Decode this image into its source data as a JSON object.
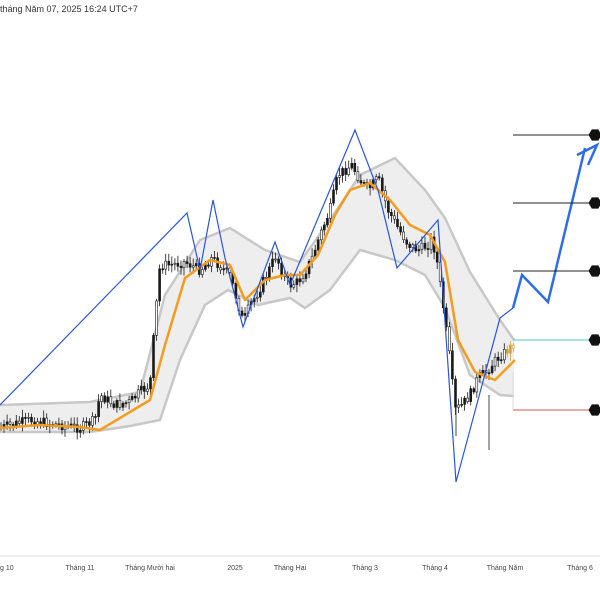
{
  "header": {
    "text": "tháng Năm 07, 2025 16:24 UTC+7"
  },
  "colors": {
    "background": "#ffffff",
    "candle": "#1a1a1a",
    "candle_recent": "#c8a43a",
    "band_fill": "#eeeeee",
    "band_edge": "#c8c8c8",
    "ema": "#f39c1f",
    "zigzag": "#2b55d6",
    "projection": "#2f6de4",
    "target_line": "#222222",
    "tp_line": "#59c5bc",
    "sl_line": "#d9534f",
    "marker": "#111111",
    "axis_line": "#e2e2e2"
  },
  "chart_data": {
    "type": "candlestick",
    "title": "",
    "xlabel": "",
    "ylabel": "",
    "y_axis_visible": false,
    "grid": false,
    "x_tick_labels": [
      "g 10",
      "Tháng 11",
      "Tháng Mười hai",
      "2025",
      "Tháng Hai",
      "Tháng 3",
      "Tháng 4",
      "Tháng Năm",
      "Tháng 6"
    ],
    "x_tick_positions_index": [
      0,
      80,
      150,
      235,
      290,
      365,
      435,
      505,
      580
    ],
    "price_path": [
      [
        0,
        428
      ],
      [
        30,
        420
      ],
      [
        60,
        425
      ],
      [
        80,
        428
      ],
      [
        95,
        420
      ],
      [
        100,
        395
      ],
      [
        115,
        405
      ],
      [
        130,
        402
      ],
      [
        140,
        392
      ],
      [
        150,
        385
      ],
      [
        155,
        320
      ],
      [
        160,
        265
      ],
      [
        170,
        265
      ],
      [
        185,
        262
      ],
      [
        200,
        270
      ],
      [
        212,
        258
      ],
      [
        222,
        268
      ],
      [
        230,
        275
      ],
      [
        237,
        300
      ],
      [
        243,
        322
      ],
      [
        250,
        305
      ],
      [
        258,
        292
      ],
      [
        268,
        272
      ],
      [
        276,
        255
      ],
      [
        283,
        275
      ],
      [
        290,
        285
      ],
      [
        298,
        282
      ],
      [
        305,
        272
      ],
      [
        312,
        258
      ],
      [
        320,
        235
      ],
      [
        330,
        210
      ],
      [
        338,
        175
      ],
      [
        345,
        170
      ],
      [
        352,
        165
      ],
      [
        360,
        180
      ],
      [
        368,
        190
      ],
      [
        378,
        178
      ],
      [
        388,
        210
      ],
      [
        398,
        228
      ],
      [
        408,
        244
      ],
      [
        418,
        250
      ],
      [
        428,
        245
      ],
      [
        432,
        238
      ],
      [
        437,
        262
      ],
      [
        443,
        305
      ],
      [
        450,
        360
      ],
      [
        455,
        410
      ],
      [
        462,
        405
      ],
      [
        470,
        395
      ],
      [
        478,
        378
      ],
      [
        486,
        372
      ],
      [
        494,
        362
      ],
      [
        500,
        356
      ],
      [
        505,
        352
      ],
      [
        510,
        348
      ],
      [
        515,
        342
      ],
      [
        518,
        320
      ]
    ],
    "series": [
      {
        "name": "",
        "kind": "band-upper",
        "points": [
          [
            0,
            405
          ],
          [
            90,
            402
          ],
          [
            140,
            392
          ],
          [
            165,
            295
          ],
          [
            200,
            240
          ],
          [
            230,
            228
          ],
          [
            265,
            250
          ],
          [
            300,
            262
          ],
          [
            330,
            220
          ],
          [
            360,
            175
          ],
          [
            395,
            158
          ],
          [
            425,
            190
          ],
          [
            445,
            218
          ],
          [
            470,
            272
          ],
          [
            500,
            320
          ],
          [
            514,
            340
          ]
        ]
      },
      {
        "name": "",
        "kind": "band-lower",
        "points": [
          [
            0,
            432
          ],
          [
            90,
            432
          ],
          [
            130,
            426
          ],
          [
            160,
            420
          ],
          [
            180,
            360
          ],
          [
            205,
            305
          ],
          [
            228,
            290
          ],
          [
            258,
            305
          ],
          [
            290,
            298
          ],
          [
            305,
            308
          ],
          [
            330,
            290
          ],
          [
            360,
            250
          ],
          [
            395,
            260
          ],
          [
            425,
            275
          ],
          [
            445,
            308
          ],
          [
            470,
            375
          ],
          [
            500,
            395
          ],
          [
            514,
            396
          ]
        ]
      },
      {
        "name": "",
        "kind": "ema",
        "points": [
          [
            0,
            428
          ],
          [
            40,
            425
          ],
          [
            80,
            427
          ],
          [
            100,
            430
          ],
          [
            130,
            412
          ],
          [
            150,
            400
          ],
          [
            165,
            345
          ],
          [
            185,
            278
          ],
          [
            210,
            260
          ],
          [
            230,
            265
          ],
          [
            245,
            300
          ],
          [
            265,
            280
          ],
          [
            285,
            275
          ],
          [
            300,
            275
          ],
          [
            318,
            255
          ],
          [
            335,
            215
          ],
          [
            350,
            190
          ],
          [
            370,
            183
          ],
          [
            390,
            200
          ],
          [
            410,
            225
          ],
          [
            430,
            235
          ],
          [
            445,
            262
          ],
          [
            458,
            340
          ],
          [
            475,
            372
          ],
          [
            495,
            380
          ],
          [
            515,
            360
          ]
        ]
      },
      {
        "name": "",
        "kind": "zigzag",
        "points": [
          [
            0,
            405
          ],
          [
            187,
            213
          ],
          [
            200,
            270
          ],
          [
            213,
            200
          ],
          [
            225,
            258
          ],
          [
            243,
            327
          ],
          [
            275,
            242
          ],
          [
            290,
            285
          ],
          [
            355,
            130
          ],
          [
            378,
            190
          ],
          [
            397,
            268
          ],
          [
            438,
            220
          ],
          [
            456,
            482
          ],
          [
            500,
            318
          ],
          [
            513,
            308
          ]
        ]
      },
      {
        "name": "",
        "kind": "projection",
        "points": [
          [
            513,
            308
          ],
          [
            522,
            275
          ],
          [
            548,
            302
          ],
          [
            585,
            148
          ],
          [
            597,
            145
          ]
        ]
      }
    ],
    "target_levels": [
      {
        "role": "target-3",
        "y": 135
      },
      {
        "role": "target-2",
        "y": 203
      },
      {
        "role": "target-1",
        "y": 271
      },
      {
        "role": "take-profit",
        "y": 340
      },
      {
        "role": "stop-loss",
        "y": 410
      }
    ]
  }
}
